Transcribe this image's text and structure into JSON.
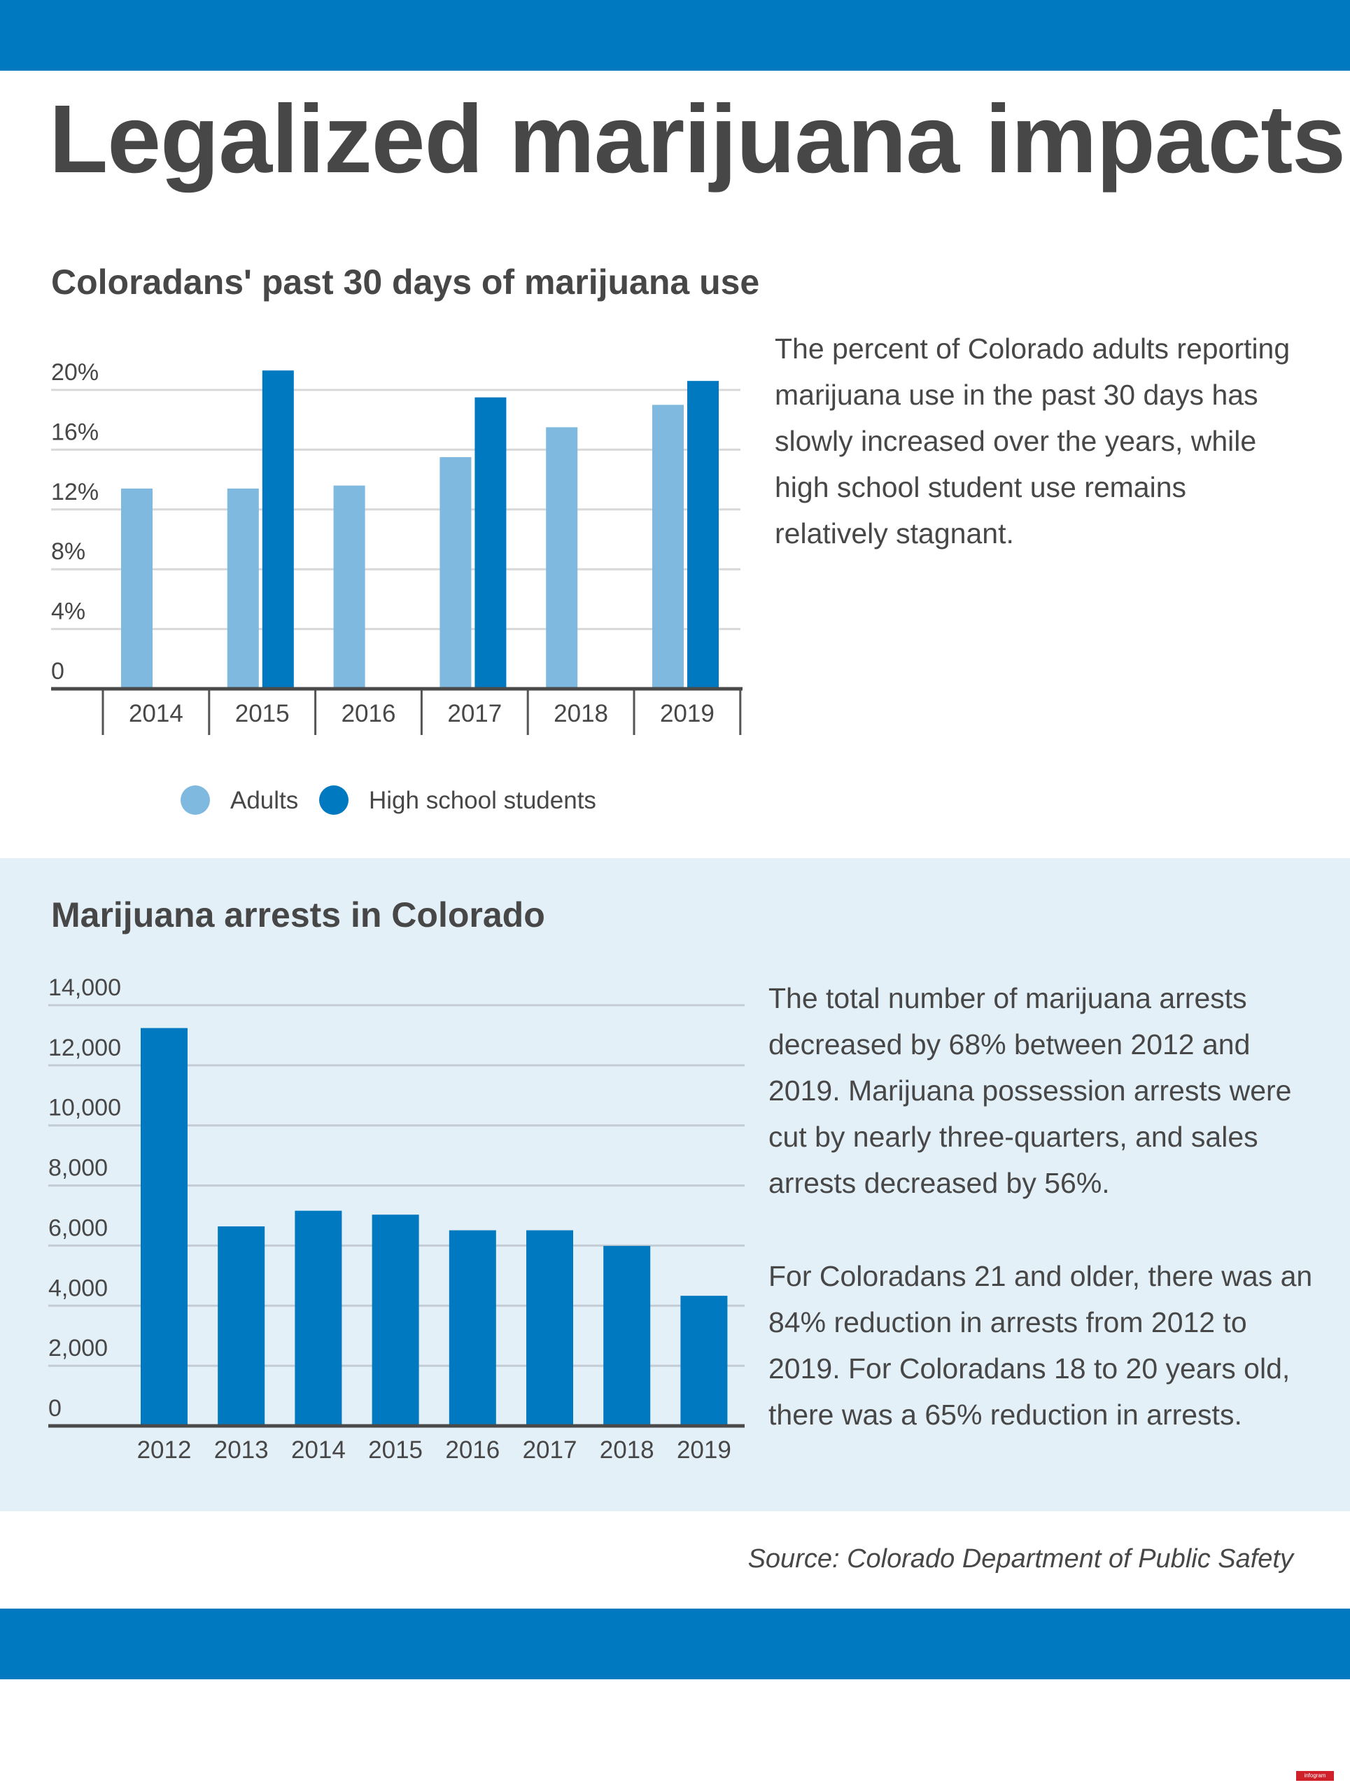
{
  "title": "Legalized marijuana impacts",
  "colors": {
    "header_bar": "#0079c1",
    "adults": "#7fb9df",
    "high_school": "#0079c1",
    "section_bg": "#e4f0f8"
  },
  "section1": {
    "subtitle": "Coloradans' past 30 days of marijuana use",
    "description": "The percent of Colorado adults reporting marijuana use in the past 30 days has slowly increased over the years, while high school student use remains relatively stagnant.",
    "legend": [
      "Adults",
      "High school students"
    ]
  },
  "section2": {
    "subtitle": "Marijuana arrests in Colorado",
    "description_1": "The total number of marijuana arrests decreased by 68% between 2012 and 2019. Marijuana possession arrests were cut by nearly three-quarters, and sales arrests decreased by 56%.",
    "description_2": "For Coloradans 21 and older, there was an 84% reduction in arrests from 2012 to 2019. For Coloradans 18 to 20 years old, there was a 65% reduction in arrests."
  },
  "source": "Source: Colorado Department of Public Safety",
  "logo_text": "infogram",
  "chart_data": [
    {
      "type": "bar",
      "title": "Coloradans' past 30 days of marijuana use",
      "categories": [
        "2014",
        "2015",
        "2016",
        "2017",
        "2018",
        "2019"
      ],
      "series": [
        {
          "name": "Adults",
          "values": [
            13.4,
            13.4,
            13.6,
            15.5,
            17.5,
            19.0
          ]
        },
        {
          "name": "High school students",
          "values": [
            null,
            21.3,
            null,
            19.5,
            null,
            20.6
          ]
        }
      ],
      "yticks": [
        "0",
        "4%",
        "8%",
        "12%",
        "16%",
        "20%"
      ],
      "ylim": [
        0,
        20
      ],
      "grid": true,
      "legend_position": "bottom"
    },
    {
      "type": "bar",
      "title": "Marijuana arrests in Colorado",
      "categories": [
        "2012",
        "2013",
        "2014",
        "2015",
        "2016",
        "2017",
        "2018",
        "2019"
      ],
      "values": [
        13240,
        6640,
        7160,
        7030,
        6510,
        6510,
        5990,
        4330
      ],
      "yticks": [
        "0",
        "2,000",
        "4,000",
        "6,000",
        "8,000",
        "10,000",
        "12,000",
        "14,000"
      ],
      "ylim": [
        0,
        14000
      ],
      "grid": true
    }
  ]
}
